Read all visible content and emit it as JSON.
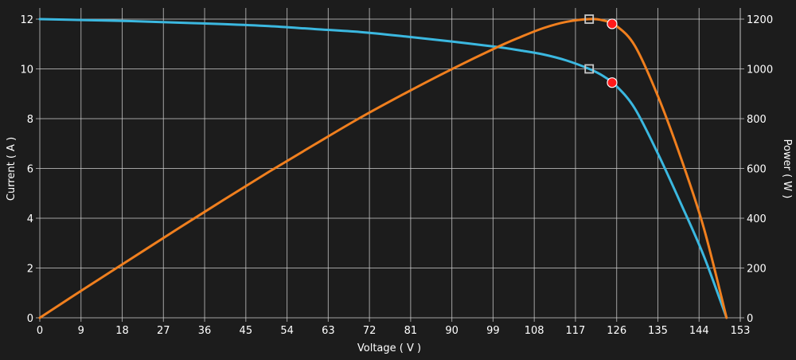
{
  "chart_data": {
    "type": "line",
    "xlabel": "Voltage ( V )",
    "ylabel_left": "Current ( A )",
    "ylabel_right": "Power ( W )",
    "xlim": [
      0,
      153
    ],
    "ylim_left": [
      0,
      12
    ],
    "ylim_right": [
      0,
      1200
    ],
    "x_ticks": [
      0,
      9,
      18,
      27,
      36,
      45,
      54,
      63,
      72,
      81,
      90,
      99,
      108,
      117,
      126,
      135,
      144,
      153
    ],
    "y_left_ticks": [
      0,
      2,
      4,
      6,
      8,
      10,
      12
    ],
    "y_right_ticks": [
      0,
      200,
      400,
      600,
      800,
      1000,
      1200
    ],
    "grid": true,
    "background_color": "#1c1c1c",
    "series": [
      {
        "key": "current",
        "axis": "left",
        "color": "#3bb8e0",
        "x": [
          0,
          10,
          20,
          30,
          40,
          50,
          60,
          70,
          80,
          90,
          100,
          105,
          110,
          115,
          120,
          123,
          126,
          130,
          135,
          140,
          145,
          150
        ],
        "y": [
          12.0,
          11.96,
          11.92,
          11.86,
          11.8,
          11.72,
          11.6,
          11.48,
          11.3,
          11.1,
          10.88,
          10.74,
          10.58,
          10.34,
          10.0,
          9.72,
          9.3,
          8.4,
          6.6,
          4.6,
          2.5,
          0.0
        ]
      },
      {
        "key": "power",
        "axis": "right",
        "color": "#f07f1e",
        "x": [
          0,
          10,
          20,
          30,
          40,
          50,
          60,
          70,
          80,
          90,
          100,
          105,
          110,
          115,
          120,
          123,
          126,
          130,
          135,
          140,
          145,
          150
        ],
        "y": [
          0,
          120,
          238,
          356,
          472,
          586,
          696,
          804,
          904,
          999,
          1088,
          1128,
          1164,
          1189,
          1200,
          1195,
          1172,
          1092,
          891,
          644,
          363,
          0
        ]
      }
    ],
    "markers": [
      {
        "key": "current-mpp-square",
        "shape": "square",
        "axis": "left",
        "x": 120,
        "y": 10.0,
        "color": "#c8c8c8"
      },
      {
        "key": "power-mpp-square",
        "shape": "square",
        "axis": "right",
        "x": 120,
        "y": 1200,
        "color": "#c8c8c8"
      },
      {
        "key": "current-op-dot",
        "shape": "circle",
        "axis": "left",
        "x": 125,
        "y": 9.45,
        "color": "#ff1a1a"
      },
      {
        "key": "power-op-dot",
        "shape": "circle",
        "axis": "right",
        "x": 125,
        "y": 1181,
        "color": "#ff1a1a"
      }
    ]
  }
}
